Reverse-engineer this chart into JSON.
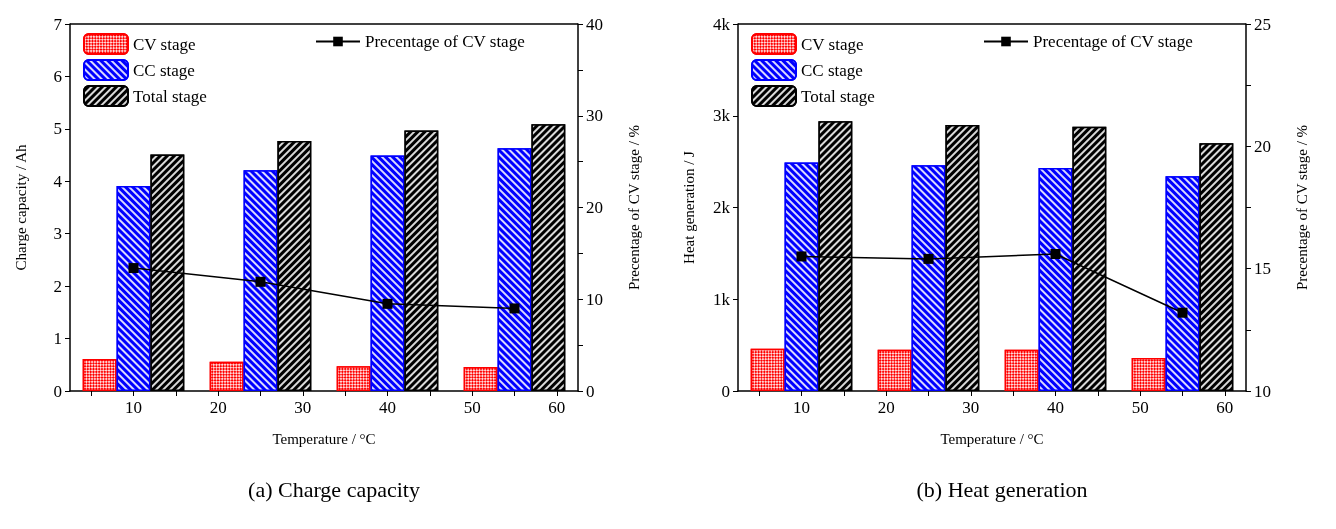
{
  "chart_data": [
    {
      "type": "bar",
      "xlabel": "Temperature / °C",
      "ylabel": "Charge capacity / Ah",
      "y2label": "Precentage of CV stage / %",
      "annotations": [
        "(a) Charge capacity"
      ],
      "xlim": [
        2.5,
        62.5
      ],
      "xticks": [
        {
          "value": 5,
          "label": null
        },
        10,
        {
          "value": 15,
          "label": null
        },
        20,
        {
          "value": 25,
          "label": null
        },
        30,
        {
          "value": 35,
          "label": null
        },
        40,
        {
          "value": 45,
          "label": null
        },
        50,
        {
          "value": 55,
          "label": null
        },
        60
      ],
      "ylim": [
        0,
        7
      ],
      "yticks": [
        0,
        1,
        2,
        3,
        4,
        5,
        6,
        7
      ],
      "y2lim": [
        0,
        40
      ],
      "y2ticks": [
        0,
        {
          "value": 5,
          "label": null
        },
        10,
        {
          "value": 15,
          "label": null
        },
        20,
        {
          "value": 25,
          "label": null
        },
        30,
        {
          "value": 35,
          "label": null
        },
        40
      ],
      "grid": false,
      "legend": "top left",
      "series": [
        {
          "name": "CV stage",
          "color": "#ff0000",
          "x": [
            6,
            21,
            36,
            51
          ],
          "values": [
            0.61,
            0.56,
            0.47,
            0.46
          ]
        },
        {
          "name": "CC stage",
          "color": "#0000ff",
          "x": [
            10,
            25,
            40,
            55
          ],
          "values": [
            3.91,
            4.21,
            4.49,
            4.63
          ]
        },
        {
          "name": "Total stage",
          "color": "#000000",
          "x": [
            14,
            29,
            44,
            59
          ],
          "values": [
            4.51,
            4.77,
            4.97,
            5.09
          ]
        },
        {
          "name": "Precentage of CV stage",
          "type": "line",
          "axis": "y2",
          "color": "#000000",
          "marker": "square",
          "x": [
            10,
            25,
            40,
            55
          ],
          "values": [
            13.4,
            11.9,
            9.5,
            9.0
          ]
        }
      ]
    },
    {
      "type": "bar",
      "xlabel": "Temperature / °C",
      "ylabel": "Heat generation / J",
      "y2label": "Precentage of CV stage / %",
      "annotations": [
        "(b) Heat generation"
      ],
      "xlim": [
        2.5,
        62.5
      ],
      "xticks": [
        {
          "value": 5,
          "label": null
        },
        10,
        {
          "value": 15,
          "label": null
        },
        20,
        {
          "value": 25,
          "label": null
        },
        30,
        {
          "value": 35,
          "label": null
        },
        40,
        {
          "value": 45,
          "label": null
        },
        50,
        {
          "value": 55,
          "label": null
        },
        60
      ],
      "ylim": [
        0,
        4000
      ],
      "yticks": [
        0,
        {
          "value": 1000,
          "label": "1k"
        },
        {
          "value": 2000,
          "label": "2k"
        },
        {
          "value": 3000,
          "label": "3k"
        },
        {
          "value": 4000,
          "label": "4k"
        }
      ],
      "y2lim": [
        10,
        25
      ],
      "y2ticks": [
        10,
        {
          "value": 12.5,
          "label": null
        },
        15,
        {
          "value": 17.5,
          "label": null
        },
        20,
        {
          "value": 22.5,
          "label": null
        },
        25
      ],
      "grid": false,
      "legend": "top left",
      "series": [
        {
          "name": "CV stage",
          "color": "#ff0000",
          "x": [
            6,
            21,
            36,
            51
          ],
          "values": [
            460,
            450,
            450,
            360
          ]
        },
        {
          "name": "CC stage",
          "color": "#0000ff",
          "x": [
            10,
            25,
            40,
            55
          ],
          "values": [
            2490,
            2460,
            2430,
            2340
          ]
        },
        {
          "name": "Total stage",
          "color": "#000000",
          "x": [
            14,
            29,
            44,
            59
          ],
          "values": [
            2940,
            2900,
            2880,
            2700
          ]
        },
        {
          "name": "Precentage of CV stage",
          "type": "line",
          "axis": "y2",
          "color": "#000000",
          "marker": "square",
          "x": [
            10,
            25,
            40,
            55
          ],
          "values": [
            15.5,
            15.4,
            15.6,
            13.2
          ]
        }
      ]
    }
  ]
}
